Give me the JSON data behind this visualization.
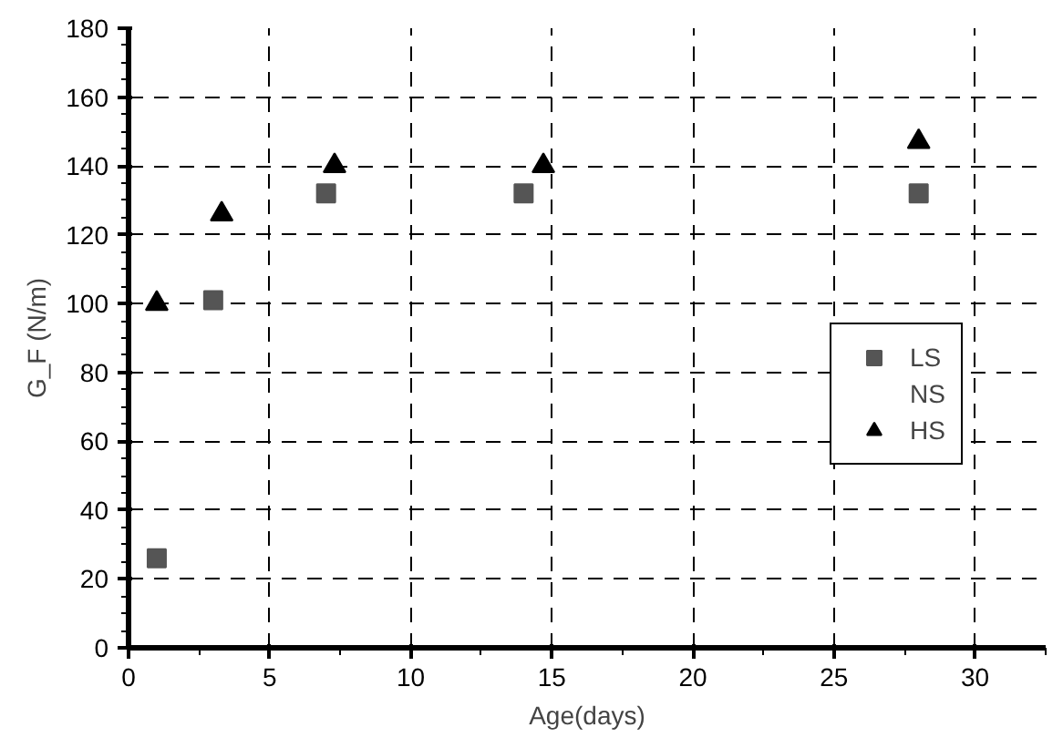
{
  "chart_data": {
    "type": "scatter",
    "xlabel": "Age(days)",
    "ylabel": "G_F (N/m)",
    "xlim": [
      0,
      32.5
    ],
    "xticks": [
      0,
      5,
      10,
      15,
      20,
      25,
      30
    ],
    "ylim": [
      0,
      180
    ],
    "yticks": [
      0,
      20,
      40,
      60,
      80,
      100,
      120,
      140,
      160,
      180
    ],
    "grid": true,
    "legend": "right",
    "series": [
      {
        "name": "LS",
        "color": "#555555",
        "marker": "square",
        "x": [
          1,
          3,
          7,
          14,
          28
        ],
        "values": [
          26,
          101,
          132,
          132,
          132
        ]
      },
      {
        "name": "NS",
        "marker": "none"
      },
      {
        "name": "HS",
        "color": "#000000",
        "marker": "triangle",
        "x": [
          1,
          3.3,
          7.3,
          14.7,
          28
        ],
        "values": [
          100,
          126,
          140,
          140,
          147
        ]
      }
    ]
  }
}
